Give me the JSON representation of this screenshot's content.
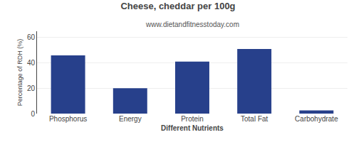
{
  "chart_data": {
    "type": "bar",
    "title": "Cheese, cheddar per 100g",
    "subtitle": "www.dietandfitnesstoday.com",
    "xlabel": "Different Nutrients",
    "ylabel": "Percentage of RDH (%)",
    "categories": [
      "Phosphorus",
      "Energy",
      "Protein",
      "Total Fat",
      "Carbohydrate"
    ],
    "values": [
      46,
      20,
      41,
      51,
      2.5
    ],
    "color": "#27408b",
    "ylim": [
      0,
      65
    ],
    "yticks": [
      0,
      20,
      40,
      60
    ],
    "grid": true
  }
}
